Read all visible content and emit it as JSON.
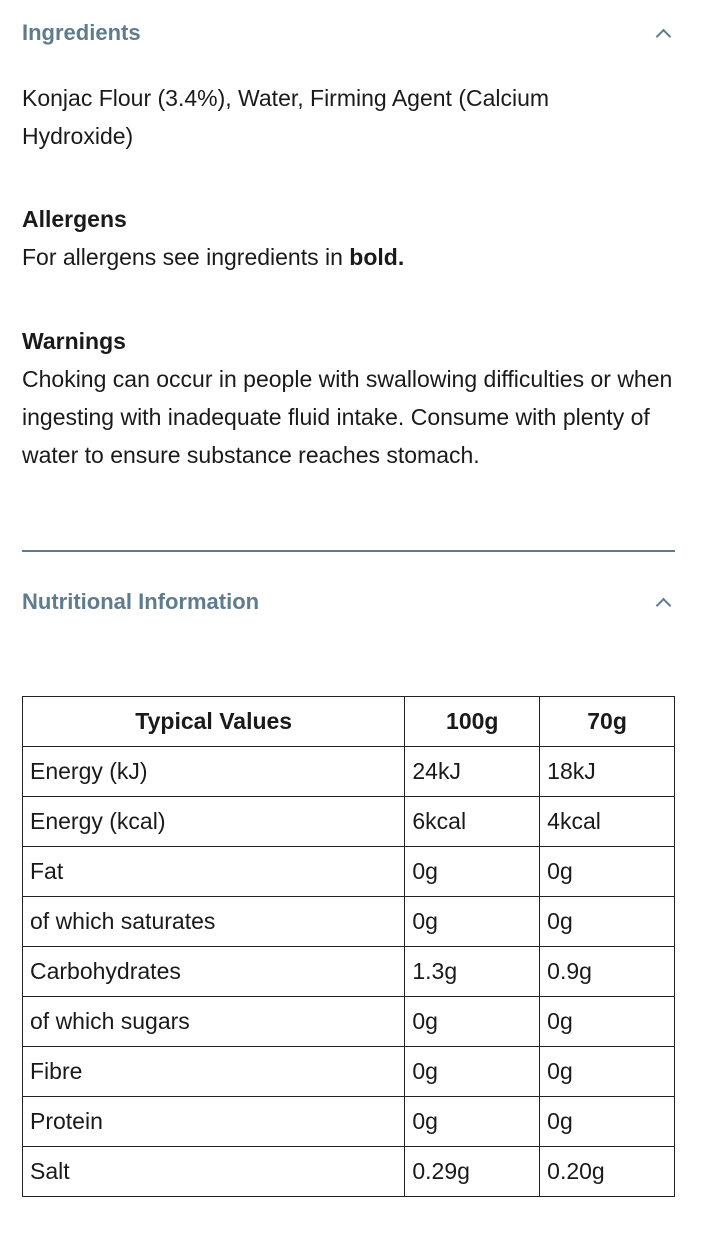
{
  "ingredients": {
    "title": "Ingredients",
    "text": "Konjac Flour (3.4%), Water, Firming Agent (Calcium Hydroxide)"
  },
  "allergens": {
    "title": "Allergens",
    "text": "For allergens see ingredients in ",
    "bold": "bold."
  },
  "warnings": {
    "title": "Warnings",
    "text": "Choking can occur in people with swallowing difficulties or when ingesting with inadequate fluid intake. Consume with plenty of water to ensure substance reaches stomach."
  },
  "nutrition": {
    "title": "Nutritional Information",
    "headers": [
      "Typical Values",
      "100g",
      "70g"
    ],
    "rows": [
      [
        "Energy (kJ)",
        "24kJ",
        "18kJ"
      ],
      [
        "Energy (kcal)",
        "6kcal",
        "4kcal"
      ],
      [
        "Fat",
        "0g",
        "0g"
      ],
      [
        "of which saturates",
        "0g",
        "0g"
      ],
      [
        "Carbohydrates",
        "1.3g",
        "0.9g"
      ],
      [
        "of which sugars",
        "0g",
        "0g"
      ],
      [
        "Fibre",
        "0g",
        "0g"
      ],
      [
        "Protein",
        "0g",
        "0g"
      ],
      [
        "Salt",
        "0.29g",
        "0.20g"
      ]
    ]
  },
  "colors": {
    "heading": "#5f7b8e"
  }
}
